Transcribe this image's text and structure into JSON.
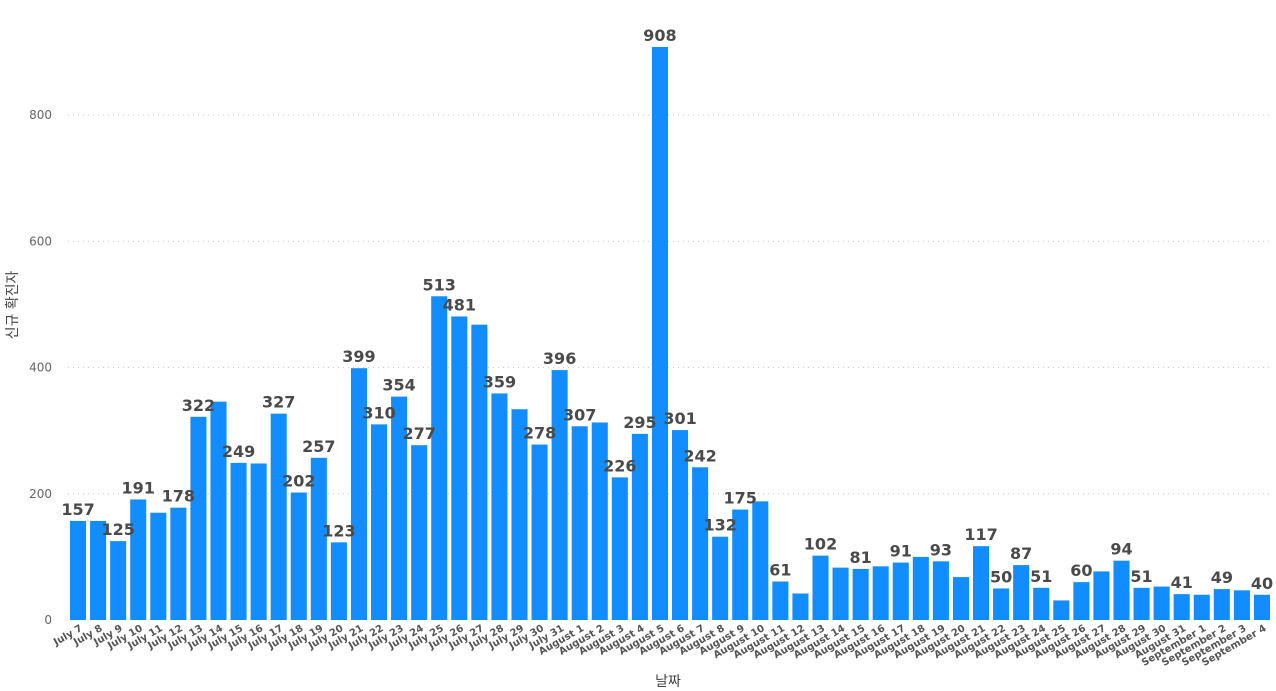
{
  "chart_data": {
    "type": "bar",
    "title": "",
    "xlabel": "날짜",
    "ylabel": "신규 확진자",
    "ylim": [
      0,
      935
    ],
    "yticks": [
      0,
      200,
      400,
      600,
      800
    ],
    "grid": true,
    "bar_color": "#118DFF",
    "categories": [
      "July 7",
      "July 8",
      "July 9",
      "July 10",
      "July 11",
      "July 12",
      "July 13",
      "July 14",
      "July 15",
      "July 16",
      "July 17",
      "July 18",
      "July 19",
      "July 20",
      "July 21",
      "July 22",
      "July 23",
      "July 24",
      "July 25",
      "July 26",
      "July 27",
      "July 28",
      "July 29",
      "July 30",
      "July 31",
      "August 1",
      "August 2",
      "August 3",
      "August 4",
      "August 5",
      "August 6",
      "August 7",
      "August 8",
      "August 9",
      "August 10",
      "August 11",
      "August 12",
      "August 13",
      "August 14",
      "August 15",
      "August 16",
      "August 17",
      "August 18",
      "August 19",
      "August 20",
      "August 21",
      "August 22",
      "August 23",
      "August 24",
      "August 25",
      "August 26",
      "August 27",
      "August 28",
      "August 29",
      "August 30",
      "August 31",
      "September 1",
      "September 2",
      "September 3",
      "September 4"
    ],
    "values": [
      157,
      157,
      125,
      191,
      170,
      178,
      322,
      346,
      249,
      248,
      327,
      202,
      257,
      123,
      399,
      310,
      354,
      277,
      513,
      481,
      468,
      359,
      334,
      278,
      396,
      307,
      313,
      226,
      295,
      908,
      301,
      242,
      132,
      175,
      188,
      61,
      42,
      102,
      83,
      81,
      85,
      91,
      100,
      93,
      68,
      117,
      50,
      87,
      51,
      31,
      60,
      77,
      94,
      51,
      53,
      41,
      40,
      49,
      47,
      40
    ],
    "labeled": [
      true,
      false,
      true,
      true,
      false,
      true,
      true,
      false,
      true,
      false,
      true,
      true,
      true,
      true,
      true,
      true,
      true,
      true,
      true,
      true,
      false,
      true,
      false,
      true,
      true,
      true,
      false,
      true,
      true,
      true,
      true,
      true,
      true,
      true,
      false,
      true,
      false,
      true,
      false,
      true,
      false,
      true,
      false,
      true,
      false,
      true,
      true,
      true,
      true,
      false,
      true,
      false,
      true,
      true,
      false,
      true,
      false,
      true,
      false,
      true
    ]
  }
}
